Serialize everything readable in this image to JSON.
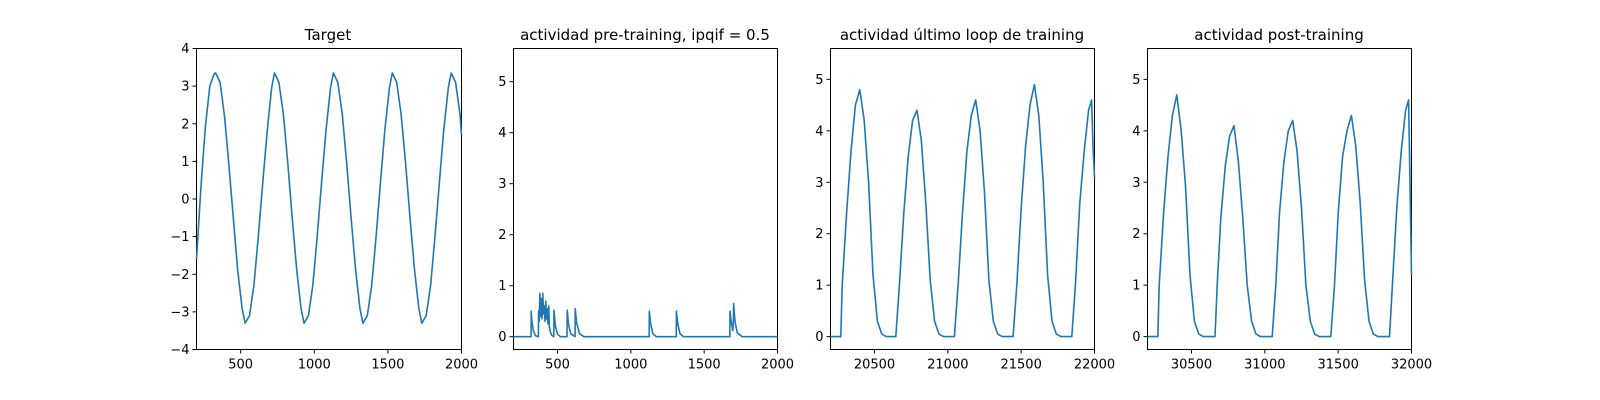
{
  "figure": {
    "background": "#ffffff",
    "line_color": "#1f77b4"
  },
  "chart_data": [
    {
      "type": "line",
      "title": "Target",
      "xlim": [
        200,
        2000
      ],
      "ylim": [
        -4,
        4
      ],
      "xticks": [
        500,
        1000,
        1500,
        2000
      ],
      "yticks": [
        -4,
        -3,
        -2,
        -1,
        0,
        1,
        2,
        3,
        4
      ],
      "ytick_labels": [
        "−4",
        "−3",
        "−2",
        "−1",
        "0",
        "1",
        "2",
        "3",
        "4"
      ],
      "series": [
        {
          "x": [
            200,
            230,
            260,
            290,
            320,
            330,
            360,
            390,
            420,
            450,
            480,
            510,
            530,
            560,
            590,
            620,
            650,
            680,
            710,
            730,
            760,
            790,
            820,
            850,
            880,
            910,
            930,
            960,
            990,
            1020,
            1050,
            1080,
            1110,
            1130,
            1160,
            1190,
            1220,
            1250,
            1280,
            1310,
            1330,
            1360,
            1390,
            1420,
            1450,
            1480,
            1510,
            1530,
            1560,
            1590,
            1620,
            1650,
            1680,
            1710,
            1730,
            1760,
            1790,
            1820,
            1850,
            1880,
            1910,
            1930,
            1960,
            1990,
            2000
          ],
          "y": [
            -1.6,
            0.3,
            1.9,
            3.0,
            3.33,
            3.35,
            3.1,
            2.2,
            0.9,
            -0.5,
            -1.9,
            -2.9,
            -3.3,
            -3.1,
            -2.3,
            -1.0,
            0.45,
            1.8,
            2.95,
            3.35,
            3.1,
            2.25,
            0.95,
            -0.5,
            -1.85,
            -2.9,
            -3.3,
            -3.1,
            -2.3,
            -1.0,
            0.45,
            1.85,
            2.95,
            3.35,
            3.1,
            2.25,
            0.95,
            -0.5,
            -1.85,
            -2.9,
            -3.3,
            -3.1,
            -2.3,
            -1.0,
            0.45,
            1.85,
            2.95,
            3.35,
            3.1,
            2.25,
            0.95,
            -0.5,
            -1.85,
            -2.9,
            -3.3,
            -3.1,
            -2.3,
            -1.0,
            0.45,
            1.85,
            2.95,
            3.35,
            3.1,
            2.25,
            1.7
          ]
        }
      ]
    },
    {
      "type": "line",
      "title": "actividad pre-training, ipqif = 0.5",
      "xlim": [
        200,
        2000
      ],
      "ylim": [
        -0.25,
        5.65
      ],
      "xticks": [
        500,
        1000,
        1500,
        2000
      ],
      "yticks": [
        0,
        1,
        2,
        3,
        4,
        5
      ],
      "ytick_labels": [
        "0",
        "1",
        "2",
        "3",
        "4",
        "5"
      ],
      "series": [
        {
          "x": [
            200,
            320,
            321,
            325,
            335,
            350,
            370,
            371,
            375,
            380,
            385,
            390,
            395,
            400,
            405,
            410,
            415,
            420,
            425,
            430,
            435,
            440,
            445,
            450,
            460,
            475,
            476,
            485,
            500,
            520,
            565,
            566,
            575,
            590,
            610,
            620,
            621,
            630,
            650,
            680,
            1125,
            1126,
            1135,
            1150,
            1175,
            1310,
            1311,
            1320,
            1335,
            1360,
            1675,
            1676,
            1685,
            1695,
            1700,
            1701,
            1710,
            1725,
            1760,
            2000
          ],
          "y": [
            0,
            0,
            0.5,
            0.32,
            0.12,
            0.02,
            0.0,
            0.5,
            0.3,
            0.85,
            0.4,
            0.75,
            0.35,
            0.85,
            0.45,
            0.6,
            0.3,
            0.7,
            0.35,
            0.55,
            0.25,
            0.6,
            0.2,
            0.1,
            0.03,
            0.0,
            0.52,
            0.22,
            0.05,
            0.0,
            0.0,
            0.52,
            0.25,
            0.06,
            0.02,
            0.0,
            0.55,
            0.28,
            0.06,
            0.0,
            0.0,
            0.5,
            0.26,
            0.06,
            0.0,
            0.0,
            0.5,
            0.25,
            0.06,
            0.0,
            0.0,
            0.5,
            0.28,
            0.12,
            0.35,
            0.65,
            0.3,
            0.08,
            0.0,
            0.0
          ]
        }
      ]
    },
    {
      "type": "line",
      "title": "actividad último loop de training",
      "xlim": [
        20200,
        22000
      ],
      "ylim": [
        -0.25,
        5.6
      ],
      "xticks": [
        20500,
        21000,
        21500,
        22000
      ],
      "yticks": [
        0,
        1,
        2,
        3,
        4,
        5
      ],
      "ytick_labels": [
        "0",
        "1",
        "2",
        "3",
        "4",
        "5"
      ],
      "series": [
        {
          "x": [
            20200,
            20270,
            20280,
            20310,
            20340,
            20370,
            20400,
            20430,
            20460,
            20490,
            20520,
            20550,
            20580,
            20610,
            20640,
            20645,
            20670,
            20700,
            20730,
            20760,
            20790,
            20820,
            20850,
            20880,
            20910,
            20940,
            20970,
            21000,
            21030,
            21045,
            21070,
            21100,
            21130,
            21160,
            21190,
            21220,
            21250,
            21280,
            21310,
            21340,
            21370,
            21400,
            21430,
            21445,
            21470,
            21500,
            21530,
            21560,
            21590,
            21620,
            21650,
            21680,
            21710,
            21740,
            21770,
            21800,
            21830,
            21845,
            21870,
            21900,
            21930,
            21960,
            21980,
            21990,
            22000
          ],
          "y": [
            0,
            0,
            1.0,
            2.4,
            3.6,
            4.5,
            4.8,
            4.2,
            3.0,
            1.2,
            0.3,
            0.05,
            0.0,
            0.0,
            0.0,
            0.0,
            1.0,
            2.4,
            3.5,
            4.2,
            4.4,
            3.8,
            2.6,
            1.1,
            0.3,
            0.05,
            0.0,
            0.0,
            0.0,
            0.0,
            1.0,
            2.4,
            3.6,
            4.3,
            4.6,
            4.0,
            2.8,
            1.1,
            0.3,
            0.05,
            0.0,
            0.0,
            0.0,
            0.0,
            1.0,
            2.5,
            3.7,
            4.5,
            4.9,
            4.3,
            3.0,
            1.2,
            0.3,
            0.05,
            0.0,
            0.0,
            0.0,
            0.0,
            1.0,
            2.6,
            3.6,
            4.4,
            4.6,
            3.7,
            3.1
          ]
        }
      ]
    },
    {
      "type": "line",
      "title": "actividad post-training",
      "xlim": [
        30200,
        32000
      ],
      "ylim": [
        -0.25,
        5.6
      ],
      "xticks": [
        30500,
        31000,
        31500,
        32000
      ],
      "yticks": [
        0,
        1,
        2,
        3,
        4,
        5
      ],
      "ytick_labels": [
        "0",
        "1",
        "2",
        "3",
        "4",
        "5"
      ],
      "series": [
        {
          "x": [
            30200,
            30270,
            30280,
            30310,
            30340,
            30370,
            30400,
            30430,
            30460,
            30490,
            30520,
            30550,
            30580,
            30610,
            30640,
            30660,
            30675,
            30700,
            30730,
            30760,
            30790,
            30820,
            30850,
            30880,
            30910,
            30940,
            30970,
            31000,
            31030,
            31050,
            31075,
            31100,
            31130,
            31160,
            31190,
            31220,
            31250,
            31280,
            31310,
            31340,
            31370,
            31400,
            31430,
            31450,
            31475,
            31500,
            31530,
            31560,
            31590,
            31620,
            31650,
            31680,
            31710,
            31740,
            31770,
            31800,
            31830,
            31850,
            31870,
            31900,
            31930,
            31960,
            31980,
            31990,
            32000
          ],
          "y": [
            0,
            0,
            1.0,
            2.4,
            3.5,
            4.3,
            4.7,
            4.0,
            2.9,
            1.2,
            0.3,
            0.05,
            0.0,
            0.0,
            0.0,
            0.0,
            1.0,
            2.3,
            3.3,
            3.9,
            4.1,
            3.4,
            2.3,
            1.0,
            0.3,
            0.05,
            0.0,
            0.0,
            0.0,
            0.0,
            1.0,
            2.4,
            3.4,
            4.0,
            4.2,
            3.6,
            2.5,
            1.0,
            0.3,
            0.05,
            0.0,
            0.0,
            0.0,
            0.0,
            1.0,
            2.4,
            3.5,
            4.0,
            4.3,
            3.7,
            2.6,
            1.1,
            0.3,
            0.05,
            0.0,
            0.0,
            0.0,
            0.0,
            1.0,
            2.5,
            3.6,
            4.4,
            4.6,
            3.0,
            1.2
          ]
        }
      ]
    }
  ]
}
